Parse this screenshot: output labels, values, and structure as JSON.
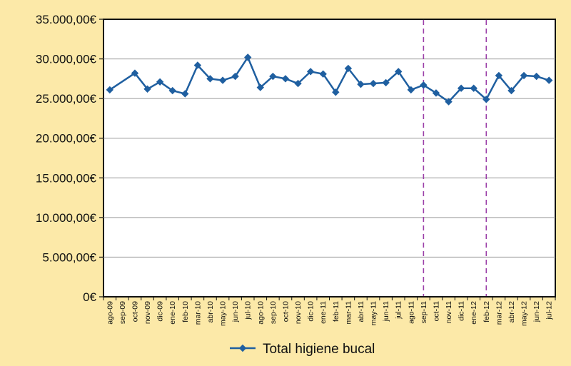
{
  "chart_data": {
    "type": "line",
    "categories": [
      "ago-09",
      "sep-09",
      "oct-09",
      "nov-09",
      "dic-09",
      "ene-10",
      "feb-10",
      "mar-10",
      "abr-10",
      "may-10",
      "jun-10",
      "jul-10",
      "ago-10",
      "sep-10",
      "oct-10",
      "nov-10",
      "dic-10",
      "ene-11",
      "feb-11",
      "mar-11",
      "abr-11",
      "may-11",
      "jun-11",
      "jul-11",
      "ago-11",
      "sep-11",
      "oct-11",
      "nov-11",
      "dic-11",
      "ene-12",
      "feb-12",
      "mar-12",
      "abr-12",
      "may-12",
      "jun-12",
      "jul-12"
    ],
    "series": [
      {
        "name": "Total higiene bucal",
        "color": "#1F5FA0",
        "values": [
          26100,
          null,
          28200,
          26200,
          27100,
          26000,
          25600,
          29200,
          27500,
          27300,
          27800,
          30200,
          26400,
          27800,
          27500,
          26900,
          28400,
          28100,
          25800,
          28800,
          26800,
          26900,
          27000,
          28400,
          26100,
          26700,
          25700,
          24600,
          26300,
          26300,
          24900,
          27900,
          26000,
          27900,
          27800,
          27300
        ]
      }
    ],
    "ylim": [
      0,
      35000
    ],
    "yticks": [
      0,
      5000,
      10000,
      15000,
      20000,
      25000,
      30000,
      35000
    ],
    "ytick_labels": [
      "0€",
      "5.000,00€",
      "10.000,00€",
      "15.000,00€",
      "20.000,00€",
      "25.000,00€",
      "30.000,00€",
      "35.000,00€"
    ],
    "grid": true,
    "reference_lines": [
      {
        "category": "sep-11",
        "style": "dashed",
        "color": "#9B3FA8"
      },
      {
        "category": "feb-12",
        "style": "dashed",
        "color": "#9B3FA8"
      }
    ],
    "legend": {
      "position": "bottom",
      "entries": [
        "Total higiene bucal"
      ]
    },
    "title": "",
    "xlabel": "",
    "ylabel": ""
  }
}
